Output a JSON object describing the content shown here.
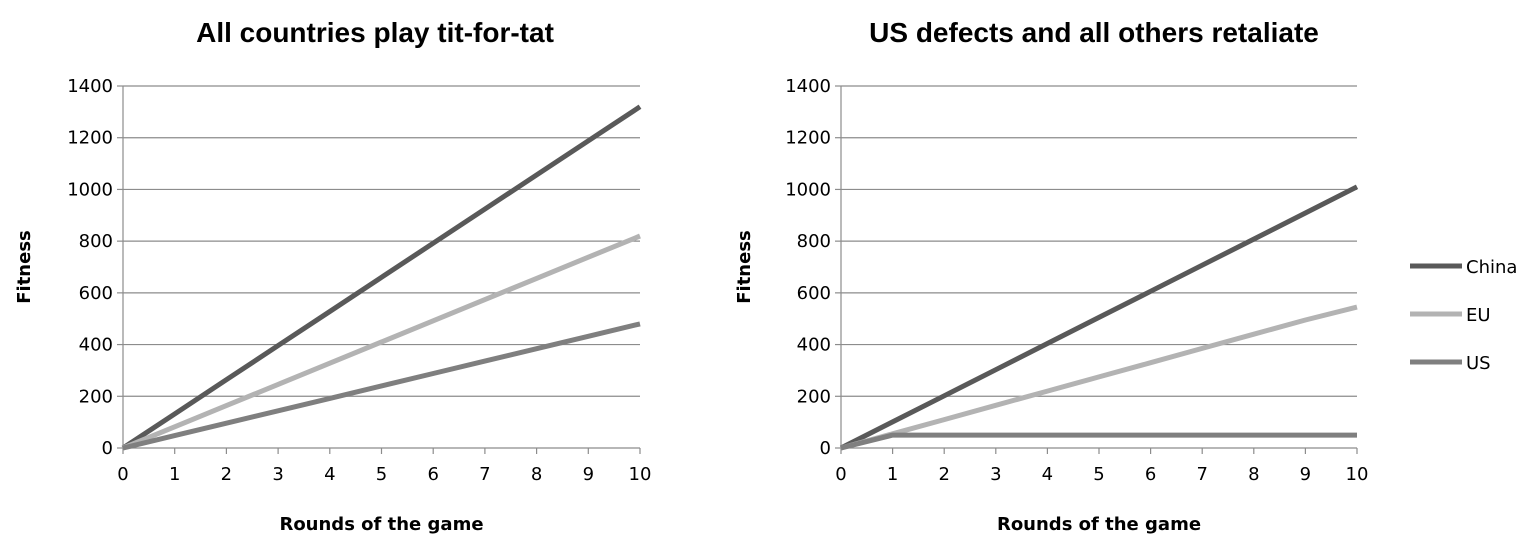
{
  "chart_data": [
    {
      "type": "line",
      "title": "All countries play tit-for-tat",
      "xlabel": "Rounds of the game",
      "ylabel": "Fitness",
      "xlim": [
        0,
        10
      ],
      "ylim": [
        0,
        1400
      ],
      "x_ticks": [
        0,
        1,
        2,
        3,
        4,
        5,
        6,
        7,
        8,
        9,
        10
      ],
      "y_ticks": [
        0,
        200,
        400,
        600,
        800,
        1000,
        1200,
        1400
      ],
      "grid": true,
      "x": [
        0,
        1,
        2,
        3,
        4,
        5,
        6,
        7,
        8,
        9,
        10
      ],
      "series": [
        {
          "name": "China",
          "color": "#595959",
          "values": [
            0,
            132,
            264,
            396,
            528,
            660,
            792,
            924,
            1056,
            1188,
            1320
          ]
        },
        {
          "name": "EU",
          "color": "#b3b3b3",
          "values": [
            0,
            82,
            164,
            246,
            328,
            410,
            492,
            574,
            656,
            738,
            820
          ]
        },
        {
          "name": "US",
          "color": "#7f7f7f",
          "values": [
            0,
            48,
            96,
            144,
            192,
            240,
            288,
            336,
            384,
            432,
            480
          ]
        }
      ]
    },
    {
      "type": "line",
      "title": "US defects and all others retaliate",
      "xlabel": "Rounds of the game",
      "ylabel": "Fitness",
      "xlim": [
        0,
        10
      ],
      "ylim": [
        0,
        1400
      ],
      "x_ticks": [
        0,
        1,
        2,
        3,
        4,
        5,
        6,
        7,
        8,
        9,
        10
      ],
      "y_ticks": [
        0,
        200,
        400,
        600,
        800,
        1000,
        1200,
        1400
      ],
      "grid": true,
      "legend_position": "right",
      "x": [
        0,
        1,
        2,
        3,
        4,
        5,
        6,
        7,
        8,
        9,
        10
      ],
      "series": [
        {
          "name": "China",
          "color": "#595959",
          "values": [
            0,
            101,
            202,
            303,
            404,
            505,
            606,
            707,
            808,
            909,
            1010
          ]
        },
        {
          "name": "EU",
          "color": "#b3b3b3",
          "values": [
            0,
            55,
            110,
            165,
            220,
            275,
            330,
            385,
            440,
            495,
            545
          ]
        },
        {
          "name": "US",
          "color": "#7f7f7f",
          "values": [
            0,
            50,
            50,
            50,
            50,
            50,
            50,
            50,
            50,
            50,
            50
          ]
        }
      ]
    }
  ],
  "legend": [
    {
      "label": "China",
      "color": "#595959"
    },
    {
      "label": "EU",
      "color": "#b3b3b3"
    },
    {
      "label": "US",
      "color": "#7f7f7f"
    }
  ]
}
